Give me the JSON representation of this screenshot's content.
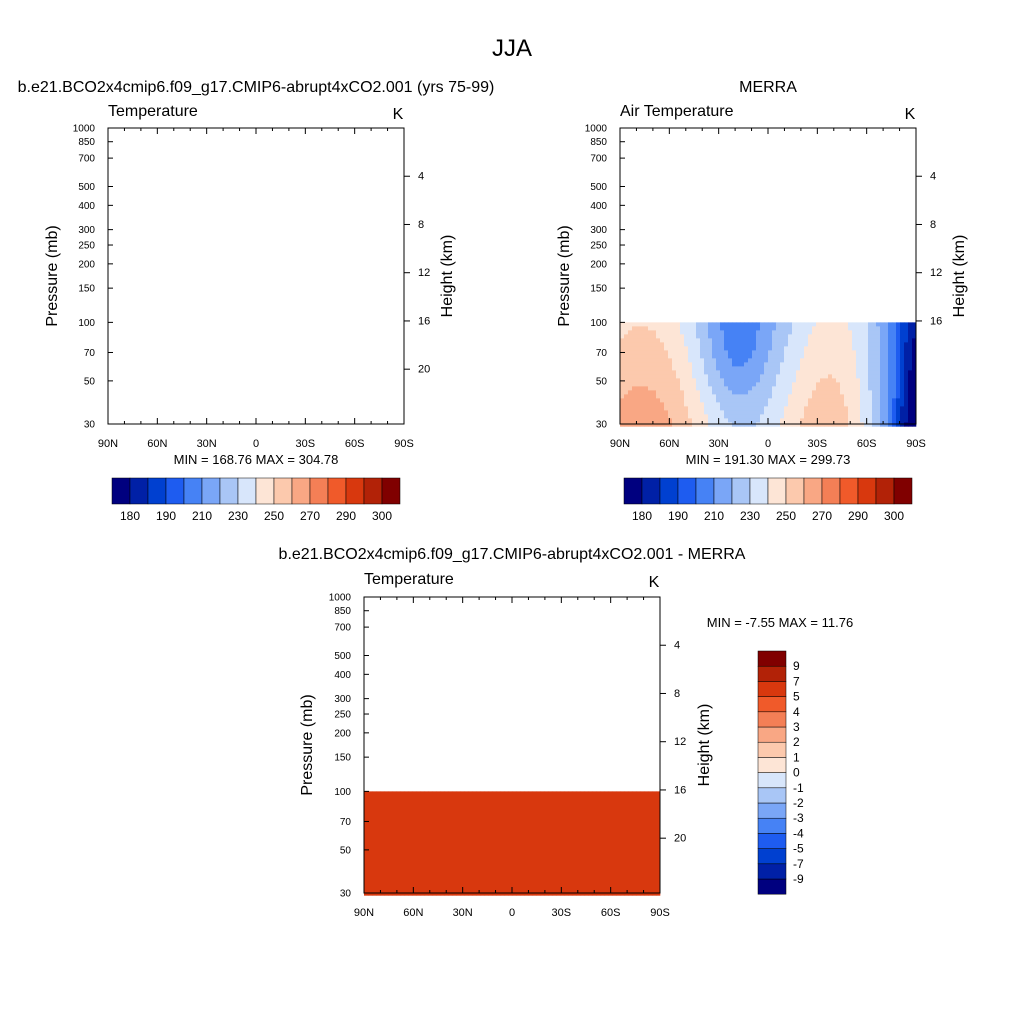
{
  "page": {
    "title": "JJA"
  },
  "chart_data": [
    {
      "type": "heatmap",
      "id": "model",
      "header": "b.e21.BCO2x4cmip6.f09_g17.CMIP6-abrupt4xCO2.001 (yrs 75-99)",
      "variable": "Temperature",
      "units": "K",
      "ylabel": "Pressure (mb)",
      "y2label": "Height (km)",
      "x_ticks": [
        "90N",
        "60N",
        "30N",
        "0",
        "30S",
        "60S",
        "90S"
      ],
      "y_ticks": [
        "30",
        "50",
        "70",
        "100",
        "150",
        "200",
        "250",
        "300",
        "400",
        "500",
        "700",
        "850",
        "1000"
      ],
      "y2_ticks": [
        "20",
        "16",
        "12",
        "8",
        "4"
      ],
      "stats": "MIN = 168.76  MAX = 304.78",
      "ylim": [
        1000,
        30
      ],
      "xlim": [
        90,
        -90
      ],
      "data_top_mb": 30,
      "colorbar": {
        "orientation": "horizontal",
        "levels": [
          175,
          180,
          185,
          190,
          200,
          210,
          220,
          230,
          240,
          250,
          260,
          270,
          280,
          290,
          295,
          300
        ],
        "labels": [
          "180",
          "190",
          "210",
          "230",
          "250",
          "270",
          "290",
          "300"
        ]
      }
    },
    {
      "type": "heatmap",
      "id": "obs",
      "header": "MERRA",
      "variable": "Air Temperature",
      "units": "K",
      "ylabel": "Pressure (mb)",
      "y2label": "Height (km)",
      "x_ticks": [
        "90N",
        "60N",
        "30N",
        "0",
        "30S",
        "60S",
        "90S"
      ],
      "y_ticks": [
        "30",
        "50",
        "70",
        "100",
        "150",
        "200",
        "250",
        "300",
        "400",
        "500",
        "700",
        "850",
        "1000"
      ],
      "y2_ticks": [
        "16",
        "12",
        "8",
        "4"
      ],
      "stats": "MIN = 191.30  MAX = 299.73",
      "ylim": [
        1000,
        30
      ],
      "xlim": [
        90,
        -90
      ],
      "data_top_mb": 100,
      "colorbar": {
        "orientation": "horizontal",
        "levels": [
          175,
          180,
          185,
          190,
          200,
          210,
          220,
          230,
          240,
          250,
          260,
          270,
          280,
          290,
          295,
          300
        ],
        "labels": [
          "180",
          "190",
          "210",
          "230",
          "250",
          "270",
          "290",
          "300"
        ]
      }
    },
    {
      "type": "heatmap",
      "id": "diff",
      "header": "b.e21.BCO2x4cmip6.f09_g17.CMIP6-abrupt4xCO2.001 - MERRA",
      "variable": "Temperature",
      "units": "K",
      "ylabel": "Pressure (mb)",
      "y2label": "Height (km)",
      "x_ticks": [
        "90N",
        "60N",
        "30N",
        "0",
        "30S",
        "60S",
        "90S"
      ],
      "y_ticks": [
        "30",
        "50",
        "70",
        "100",
        "150",
        "200",
        "250",
        "300",
        "400",
        "500",
        "700",
        "850",
        "1000"
      ],
      "y2_ticks": [
        "20",
        "16",
        "12",
        "8",
        "4"
      ],
      "stats": "MIN =  -7.55  MAX =  11.76",
      "ylim": [
        1000,
        30
      ],
      "xlim": [
        90,
        -90
      ],
      "data_top_mb": 100,
      "colorbar": {
        "orientation": "vertical",
        "levels": [
          -9,
          -7,
          -5,
          -4,
          -3,
          -2,
          -1,
          0,
          1,
          2,
          3,
          4,
          5,
          7,
          9
        ],
        "labels": [
          "-9",
          "-7",
          "-5",
          "-4",
          "-3",
          "-2",
          "-1",
          "0",
          "1",
          "2",
          "3",
          "4",
          "5",
          "7",
          "9"
        ]
      }
    }
  ],
  "palette": [
    "#00007f",
    "#0020a6",
    "#0040d0",
    "#1e5cf0",
    "#4682f5",
    "#7aa6f7",
    "#a9c6f6",
    "#d8e6fb",
    "#fde5d6",
    "#fcc9ad",
    "#f9a784",
    "#f47f56",
    "#f05a2a",
    "#d8380e",
    "#b22207",
    "#800000"
  ]
}
